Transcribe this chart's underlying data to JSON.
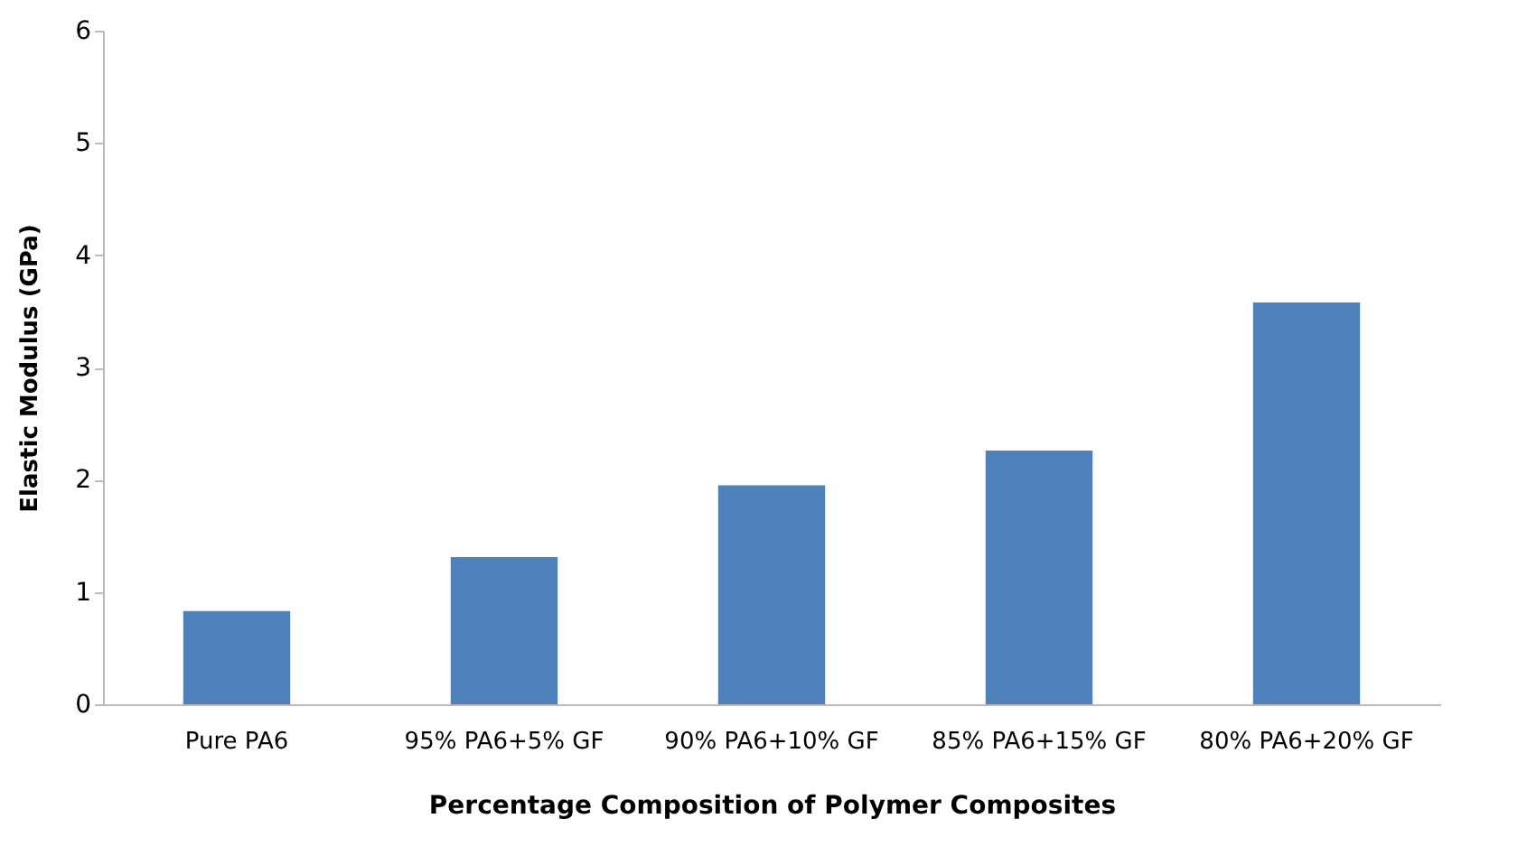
{
  "chart_data": {
    "type": "bar",
    "xlabel": "Percentage Composition of Polymer Composites",
    "ylabel": "Elastic Modulus (GPa)",
    "categories": [
      "Pure PA6",
      "95% PA6+5% GF",
      "90% PA6+10% GF",
      "85% PA6+15% GF",
      "80% PA6+20% GF"
    ],
    "values": [
      0.83,
      1.31,
      1.95,
      2.26,
      3.58
    ],
    "color": "#4f81bd",
    "ylim": [
      0,
      6
    ],
    "yticks": [
      0,
      1,
      2,
      3,
      4,
      5,
      6
    ],
    "grid": false
  }
}
